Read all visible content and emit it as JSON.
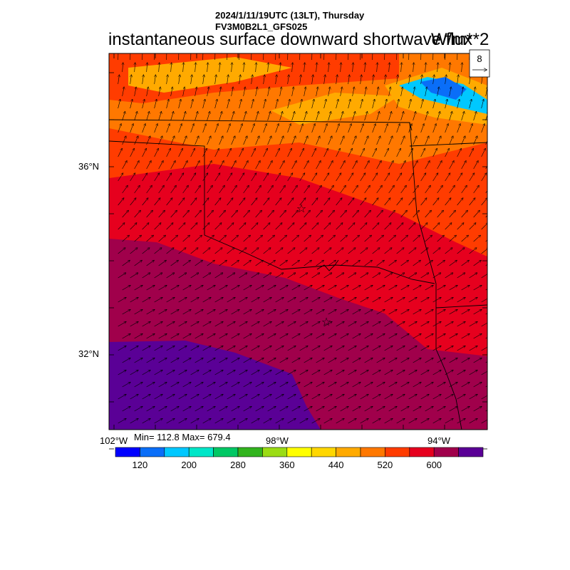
{
  "header": {
    "datetime": "2024/1/11/19UTC (13LT), Thursday",
    "model": "FV3M0B2L1_GFS025",
    "title": "instantaneous surface downward shortwave flux",
    "units": "W/m**2"
  },
  "vector_legend": {
    "reference_value": "8"
  },
  "axes": {
    "lat_labels": [
      "36°N",
      "32°N"
    ],
    "lon_labels": [
      "102°W",
      "98°W",
      "94°W"
    ]
  },
  "stats": {
    "minmax": "Min= 112.8 Max= 679.4"
  },
  "colorbar": {
    "colors": [
      "#0000ff",
      "#0a6ef8",
      "#00c8ff",
      "#00e6c8",
      "#00c864",
      "#32b41e",
      "#9bdc14",
      "#ffff00",
      "#ffd700",
      "#ffaa00",
      "#ff7800",
      "#ff3c00",
      "#e6001e",
      "#a0004b",
      "#5a0096"
    ],
    "tick_labels": [
      "120",
      "200",
      "280",
      "360",
      "440",
      "520",
      "600"
    ]
  },
  "markers": [
    {
      "name": "star-oklahoma-city-icon"
    },
    {
      "name": "star-dallas-fort-worth-icon"
    }
  ]
}
